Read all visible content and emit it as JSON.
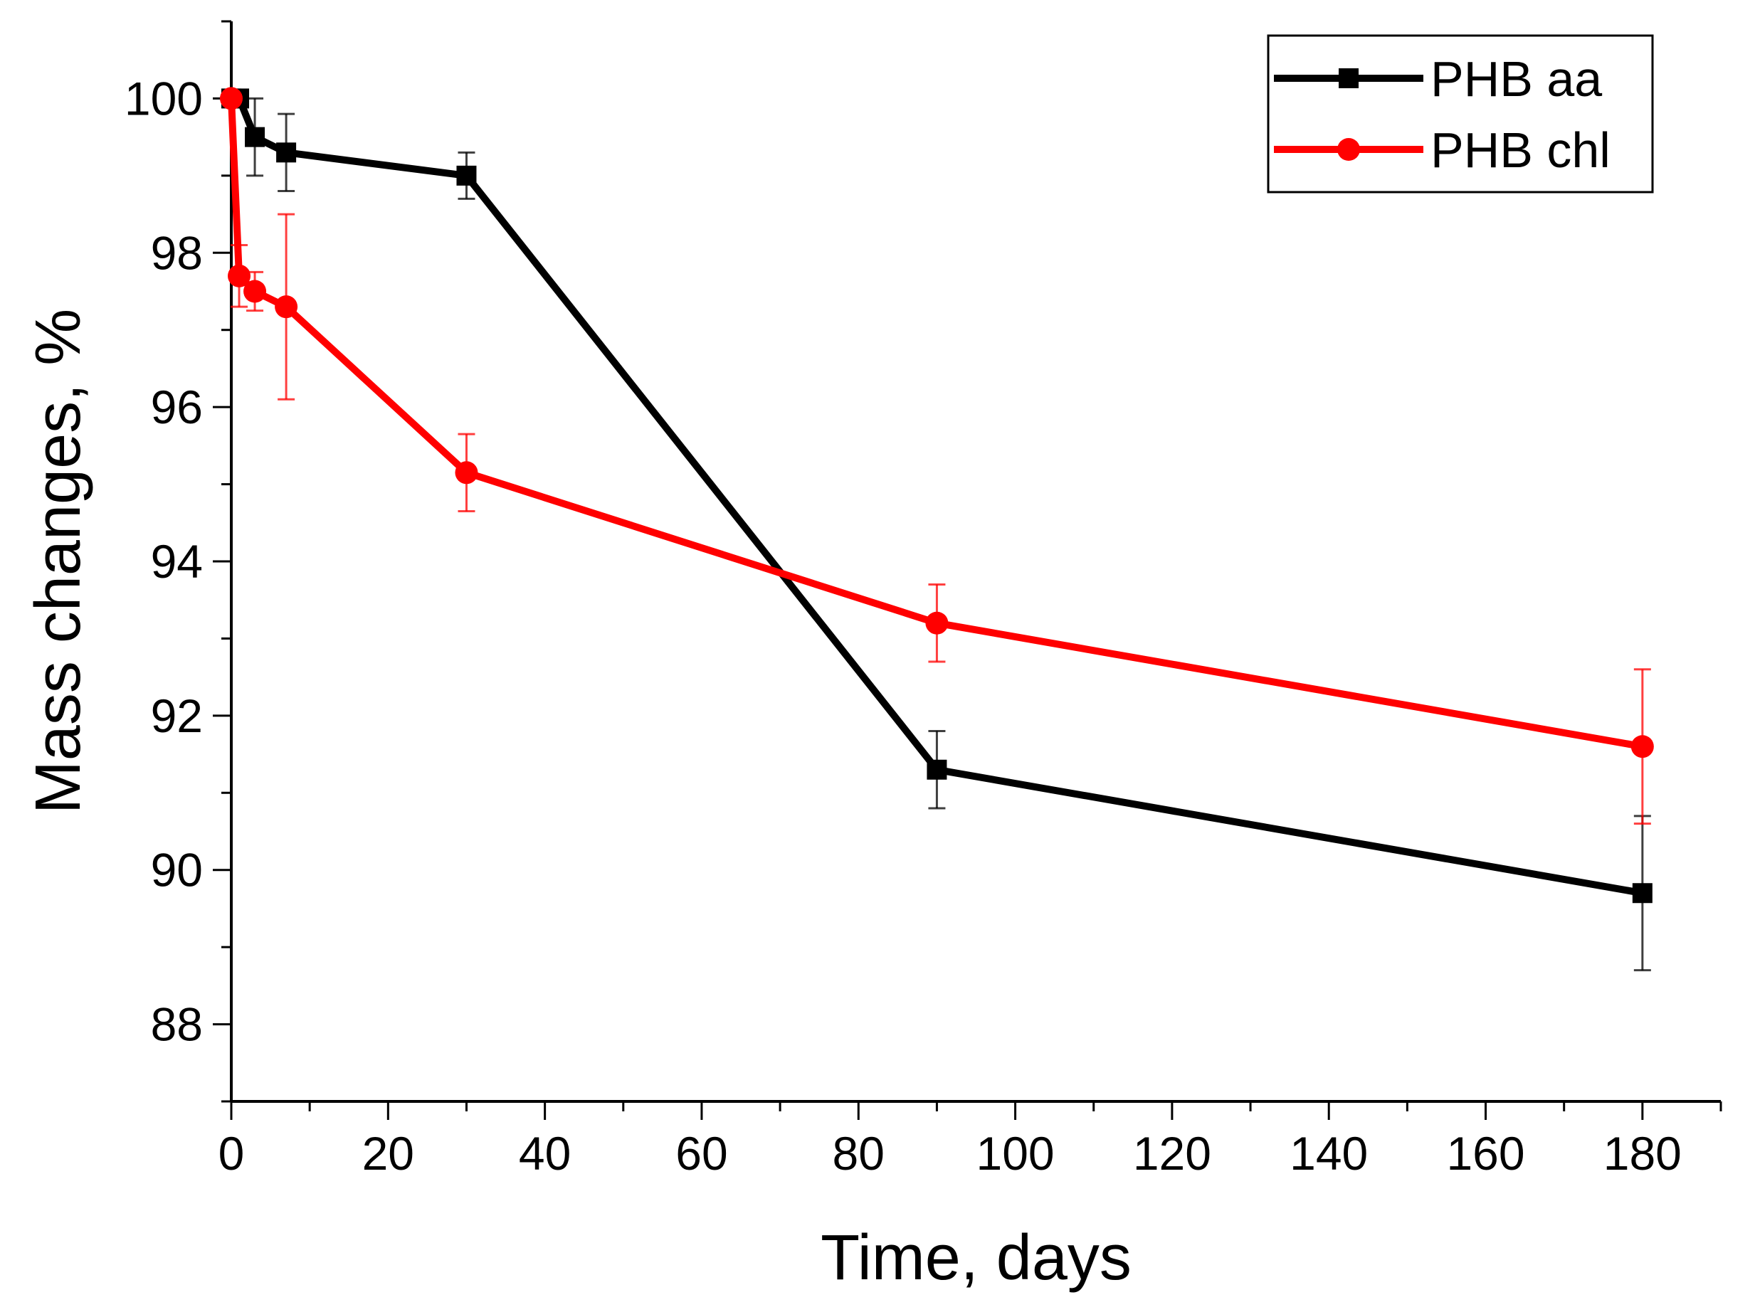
{
  "chart_data": {
    "type": "line",
    "title": "",
    "xlabel": "Time, days",
    "ylabel": "Mass changes, %",
    "xlim": [
      0,
      190
    ],
    "ylim": [
      87,
      101
    ],
    "x_ticks": [
      "0",
      "20",
      "40",
      "60",
      "80",
      "100",
      "120",
      "140",
      "160",
      "180"
    ],
    "y_ticks": [
      "88",
      "90",
      "92",
      "94",
      "96",
      "98",
      "100"
    ],
    "x_tick_values": [
      0,
      20,
      40,
      60,
      80,
      100,
      120,
      140,
      160,
      180
    ],
    "y_tick_values": [
      88,
      90,
      92,
      94,
      96,
      98,
      100
    ],
    "x_minor_step": 10,
    "y_minor_step": 1,
    "grid": false,
    "legend_position": "top-right",
    "series": [
      {
        "name": "PHB aa",
        "color": "#000000",
        "marker": "square",
        "points": [
          {
            "x": 0,
            "y": 100.0,
            "err": 0.0
          },
          {
            "x": 1,
            "y": 100.0,
            "err": 0.1
          },
          {
            "x": 3,
            "y": 99.5,
            "err": 0.5
          },
          {
            "x": 7,
            "y": 99.3,
            "err": 0.5
          },
          {
            "x": 30,
            "y": 99.0,
            "err": 0.3
          },
          {
            "x": 90,
            "y": 91.3,
            "err": 0.5
          },
          {
            "x": 180,
            "y": 89.7,
            "err": 1.0
          }
        ]
      },
      {
        "name": "PHB chl",
        "color": "#ff0000",
        "marker": "circle",
        "points": [
          {
            "x": 0,
            "y": 100.0,
            "err": 0.0
          },
          {
            "x": 1,
            "y": 97.7,
            "err": 0.4
          },
          {
            "x": 3,
            "y": 97.5,
            "err": 0.25
          },
          {
            "x": 7,
            "y": 97.3,
            "err": 1.2
          },
          {
            "x": 30,
            "y": 95.15,
            "err": 0.5
          },
          {
            "x": 90,
            "y": 93.2,
            "err": 0.5
          },
          {
            "x": 180,
            "y": 91.6,
            "err": 1.0
          }
        ]
      }
    ]
  }
}
